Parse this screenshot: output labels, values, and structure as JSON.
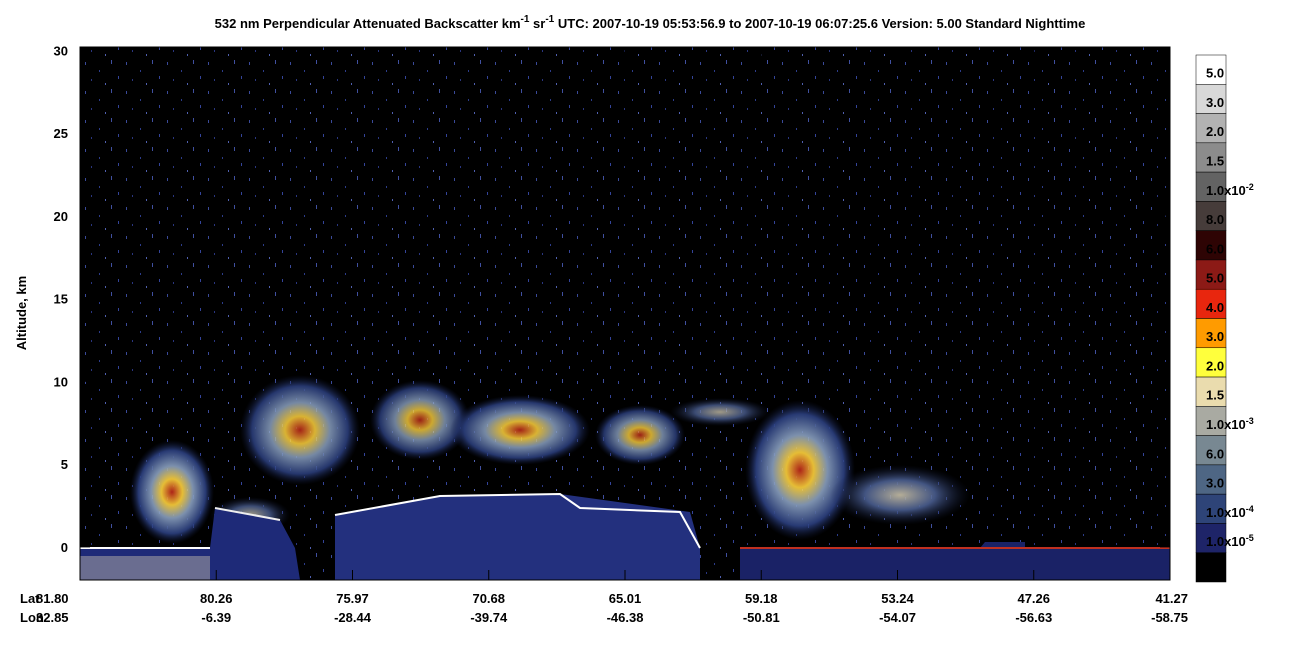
{
  "chart_data": {
    "type": "curtain",
    "title_parts": [
      "532 nm Perpendicular Attenuated Backscatter km",
      "-1",
      " sr",
      "-1",
      "  UTC: 2007-10-19 05:53:56.9 to 2007-10-19 06:07:25.6  Version: 5.00 Standard Nighttime"
    ],
    "ylabel": "Altitude, km",
    "ylim": [
      -2,
      30.2
    ],
    "yticks": [
      0,
      5,
      10,
      15,
      20,
      25,
      30
    ],
    "row_labels": [
      "Lat",
      "Lon"
    ],
    "lat": [
      "81.80",
      "80.26",
      "75.97",
      "70.68",
      "65.01",
      "59.18",
      "53.24",
      "47.26",
      "41.27"
    ],
    "lon": [
      "32.85",
      "-6.39",
      "-28.44",
      "-39.74",
      "-46.38",
      "-50.81",
      "-54.07",
      "-56.63",
      "-58.75"
    ],
    "colorbar": {
      "colors": [
        "#ffffff",
        "#d8d8d8",
        "#b2b2b2",
        "#8c8c8c",
        "#636363",
        "#463c3a",
        "#2e0404",
        "#8c1a16",
        "#e8260e",
        "#ff9b00",
        "#ffff3c",
        "#eadcae",
        "#a9aaa2",
        "#788892",
        "#4e6684",
        "#2e4478",
        "#1e2468",
        "#000000"
      ],
      "labels": [
        "5.0",
        "3.0",
        "2.0",
        "1.5",
        {
          "mantissa": "1.0x10",
          "exponent": "-2"
        },
        "8.0",
        "6.0",
        "5.0",
        "4.0",
        "3.0",
        "2.0",
        "1.5",
        {
          "mantissa": "1.0x10",
          "exponent": "-3"
        },
        "6.0",
        "3.0",
        {
          "mantissa": "1.0x10",
          "exponent": "-4"
        },
        {
          "mantissa": "1.0x10",
          "exponent": "-5"
        }
      ]
    }
  }
}
